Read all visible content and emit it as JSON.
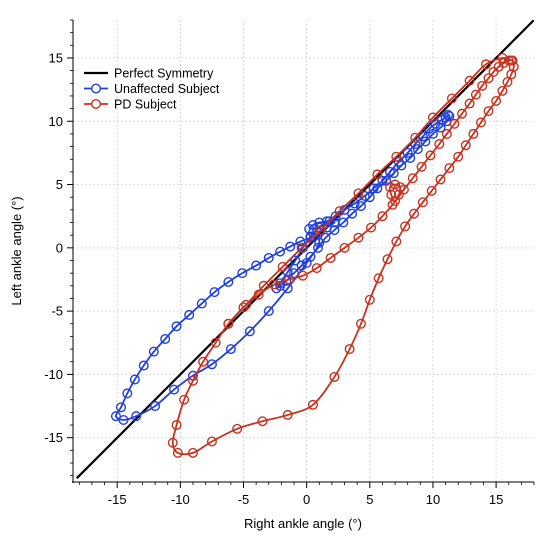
{
  "chart_data": {
    "type": "line",
    "xlabel": "Right ankle angle (°)",
    "ylabel": "Left ankle angle (°)",
    "xlim": [
      -18.5,
      18
    ],
    "ylim": [
      -18.5,
      18
    ],
    "x_ticks": [
      -15,
      -10,
      -5,
      0,
      5,
      10,
      15
    ],
    "y_ticks": [
      -15,
      -10,
      -5,
      0,
      5,
      10,
      15
    ],
    "x_tick_labels": [
      "-15",
      "-10",
      "-5",
      "0",
      "5",
      "10",
      "15"
    ],
    "y_tick_labels": [
      "-15",
      "-10",
      "-5",
      "0",
      "5",
      "10",
      "15"
    ],
    "grid": true,
    "legend_position": "top-left",
    "legend": [
      "Perfect Symmetry",
      "Unaffected Subject",
      "PD Subject"
    ],
    "series": [
      {
        "name": "Perfect Symmetry",
        "color": "#000000",
        "marker": "none",
        "points": [
          [
            -18.2,
            -18.2
          ],
          [
            18,
            18
          ]
        ]
      },
      {
        "name": "Unaffected Subject",
        "color": "#1f3fe0",
        "marker": "circle",
        "points": [
          [
            0.2,
            1.5
          ],
          [
            0.5,
            1.8
          ],
          [
            1.0,
            2.0
          ],
          [
            1.6,
            2.1
          ],
          [
            2.3,
            2.5
          ],
          [
            3.0,
            3.0
          ],
          [
            3.8,
            3.5
          ],
          [
            4.6,
            4.1
          ],
          [
            5.3,
            4.7
          ],
          [
            6.0,
            5.3
          ],
          [
            6.6,
            6.0
          ],
          [
            7.3,
            6.8
          ],
          [
            8.0,
            7.5
          ],
          [
            8.6,
            8.2
          ],
          [
            9.2,
            8.8
          ],
          [
            9.7,
            9.4
          ],
          [
            10.2,
            9.8
          ],
          [
            10.7,
            10.1
          ],
          [
            11.0,
            10.3
          ],
          [
            11.2,
            10.5
          ],
          [
            11.3,
            10.4
          ],
          [
            11.1,
            10.0
          ],
          [
            10.6,
            9.5
          ],
          [
            10.0,
            9.0
          ],
          [
            9.4,
            8.4
          ],
          [
            8.8,
            7.8
          ],
          [
            8.2,
            7.1
          ],
          [
            7.5,
            6.5
          ],
          [
            6.9,
            5.9
          ],
          [
            6.3,
            5.3
          ],
          [
            5.6,
            4.7
          ],
          [
            5.0,
            4.0
          ],
          [
            4.3,
            3.3
          ],
          [
            3.6,
            2.7
          ],
          [
            2.9,
            2.0
          ],
          [
            2.2,
            1.4
          ],
          [
            1.5,
            0.8
          ],
          [
            0.9,
            0.0
          ],
          [
            0.3,
            -0.7
          ],
          [
            -0.4,
            -1.4
          ],
          [
            -1.0,
            -2.0
          ],
          [
            -1.6,
            -2.6
          ],
          [
            -2.1,
            -3.0
          ],
          [
            -2.4,
            -3.2
          ],
          [
            -2.1,
            -2.8
          ],
          [
            -1.5,
            -1.9
          ],
          [
            -0.9,
            -1.0
          ],
          [
            -0.3,
            0.0
          ],
          [
            0.3,
            0.9
          ],
          [
            1.0,
            1.6
          ],
          [
            1.8,
            2.1
          ],
          [
            2.2,
            2.0
          ],
          [
            1.6,
            1.6
          ],
          [
            1.0,
            1.2
          ],
          [
            0.3,
            0.8
          ],
          [
            -0.5,
            0.5
          ],
          [
            -1.3,
            0.1
          ],
          [
            -2.1,
            -0.3
          ],
          [
            -3.0,
            -0.8
          ],
          [
            -4.0,
            -1.4
          ],
          [
            -5.1,
            -2.0
          ],
          [
            -6.2,
            -2.7
          ],
          [
            -7.3,
            -3.5
          ],
          [
            -8.3,
            -4.4
          ],
          [
            -9.3,
            -5.3
          ],
          [
            -10.3,
            -6.2
          ],
          [
            -11.2,
            -7.2
          ],
          [
            -12.1,
            -8.2
          ],
          [
            -12.9,
            -9.3
          ],
          [
            -13.6,
            -10.4
          ],
          [
            -14.2,
            -11.5
          ],
          [
            -14.7,
            -12.6
          ],
          [
            -15.1,
            -13.3
          ],
          [
            -14.5,
            -13.6
          ],
          [
            -13.5,
            -13.3
          ],
          [
            -12.0,
            -12.5
          ],
          [
            -10.5,
            -11.2
          ],
          [
            -9.0,
            -10.1
          ],
          [
            -7.5,
            -9.2
          ],
          [
            -6.0,
            -8.0
          ],
          [
            -4.5,
            -6.6
          ],
          [
            -3.0,
            -5.0
          ],
          [
            -1.5,
            -3.2
          ],
          [
            0.0,
            -1.2
          ],
          [
            1.0,
            0.4
          ],
          [
            0.5,
            1.2
          ]
        ]
      },
      {
        "name": "PD Subject",
        "color": "#c8321e",
        "marker": "circle",
        "points": [
          [
            -6.2,
            -6.0
          ],
          [
            -5.0,
            -4.7
          ],
          [
            -3.8,
            -3.7
          ],
          [
            -2.6,
            -2.9
          ],
          [
            -1.4,
            -2.5
          ],
          [
            -0.3,
            -2.2
          ],
          [
            0.8,
            -1.6
          ],
          [
            1.9,
            -0.8
          ],
          [
            3.0,
            0.0
          ],
          [
            4.1,
            0.8
          ],
          [
            5.1,
            1.6
          ],
          [
            6.0,
            2.5
          ],
          [
            6.8,
            3.4
          ],
          [
            7.3,
            4.2
          ],
          [
            7.4,
            4.8
          ],
          [
            7.0,
            5.0
          ],
          [
            6.6,
            4.8
          ],
          [
            6.7,
            4.2
          ],
          [
            7.0,
            3.7
          ],
          [
            7.7,
            4.6
          ],
          [
            8.4,
            5.5
          ],
          [
            9.1,
            6.4
          ],
          [
            9.8,
            7.3
          ],
          [
            10.5,
            8.2
          ],
          [
            11.1,
            9.0
          ],
          [
            11.7,
            9.8
          ],
          [
            12.3,
            10.6
          ],
          [
            12.9,
            11.4
          ],
          [
            13.4,
            12.1
          ],
          [
            13.9,
            12.8
          ],
          [
            14.4,
            13.4
          ],
          [
            14.8,
            13.9
          ],
          [
            15.2,
            14.3
          ],
          [
            15.6,
            14.6
          ],
          [
            16.0,
            14.8
          ],
          [
            16.3,
            14.8
          ],
          [
            16.4,
            14.3
          ],
          [
            16.2,
            13.7
          ],
          [
            15.9,
            13.1
          ],
          [
            15.5,
            12.4
          ],
          [
            15.0,
            11.6
          ],
          [
            14.4,
            10.8
          ],
          [
            13.8,
            9.9
          ],
          [
            13.2,
            9.0
          ],
          [
            12.6,
            8.1
          ],
          [
            12.0,
            7.2
          ],
          [
            11.3,
            6.3
          ],
          [
            10.6,
            5.4
          ],
          [
            9.9,
            4.5
          ],
          [
            9.2,
            3.6
          ],
          [
            8.5,
            2.7
          ],
          [
            7.8,
            1.7
          ],
          [
            7.1,
            0.5
          ],
          [
            6.4,
            -0.9
          ],
          [
            5.7,
            -2.4
          ],
          [
            5.0,
            -4.1
          ],
          [
            4.3,
            -6.0
          ],
          [
            3.4,
            -8.0
          ],
          [
            2.2,
            -10.2
          ],
          [
            0.5,
            -12.4
          ],
          [
            -1.5,
            -13.2
          ],
          [
            -3.5,
            -13.7
          ],
          [
            -5.5,
            -14.3
          ],
          [
            -7.5,
            -15.3
          ],
          [
            -9.0,
            -16.2
          ],
          [
            -10.2,
            -16.2
          ],
          [
            -10.6,
            -15.4
          ],
          [
            -10.3,
            -14.0
          ],
          [
            -9.7,
            -12.0
          ],
          [
            -9.0,
            -10.5
          ],
          [
            -8.2,
            -9.0
          ],
          [
            -7.2,
            -7.5
          ],
          [
            -6.2,
            -6.0
          ],
          [
            -4.8,
            -4.5
          ],
          [
            -3.4,
            -3.0
          ],
          [
            -1.9,
            -1.5
          ],
          [
            -0.4,
            0.0
          ],
          [
            1.1,
            1.4
          ],
          [
            2.6,
            2.9
          ],
          [
            4.1,
            4.3
          ],
          [
            5.6,
            5.8
          ],
          [
            7.1,
            7.2
          ],
          [
            8.6,
            8.7
          ],
          [
            10.0,
            10.3
          ],
          [
            11.5,
            11.8
          ],
          [
            12.9,
            13.2
          ],
          [
            14.2,
            14.5
          ],
          [
            15.5,
            15.0
          ],
          [
            16.2,
            14.8
          ]
        ]
      }
    ]
  }
}
